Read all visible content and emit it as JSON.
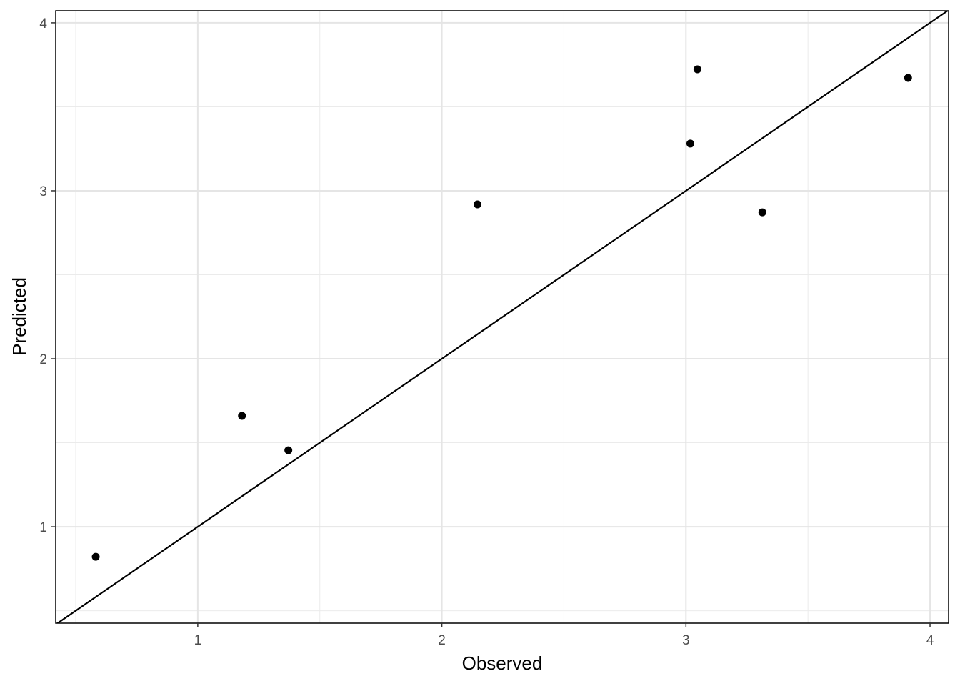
{
  "chart_data": {
    "type": "scatter",
    "x_label": "Observed",
    "y_label": "Predicted",
    "x": [
      0.582,
      1.181,
      1.371,
      2.146,
      3.018,
      3.047,
      3.313,
      3.91
    ],
    "y": [
      0.821,
      1.66,
      1.455,
      2.919,
      3.281,
      3.723,
      2.872,
      3.672
    ],
    "color": "#000000",
    "xlim": [
      0.418,
      4.076
    ],
    "ylim": [
      0.426,
      4.072
    ],
    "xticks": [
      1,
      2,
      3,
      4
    ],
    "yticks": [
      1,
      2,
      3,
      4
    ],
    "x_minor_grid": [
      0.5,
      1.5,
      2.5,
      3.5
    ],
    "y_minor_grid": [
      0.5,
      1.5,
      2.5,
      3.5
    ],
    "grid": true,
    "reference_line": {
      "slope": 1,
      "intercept": 0
    }
  }
}
